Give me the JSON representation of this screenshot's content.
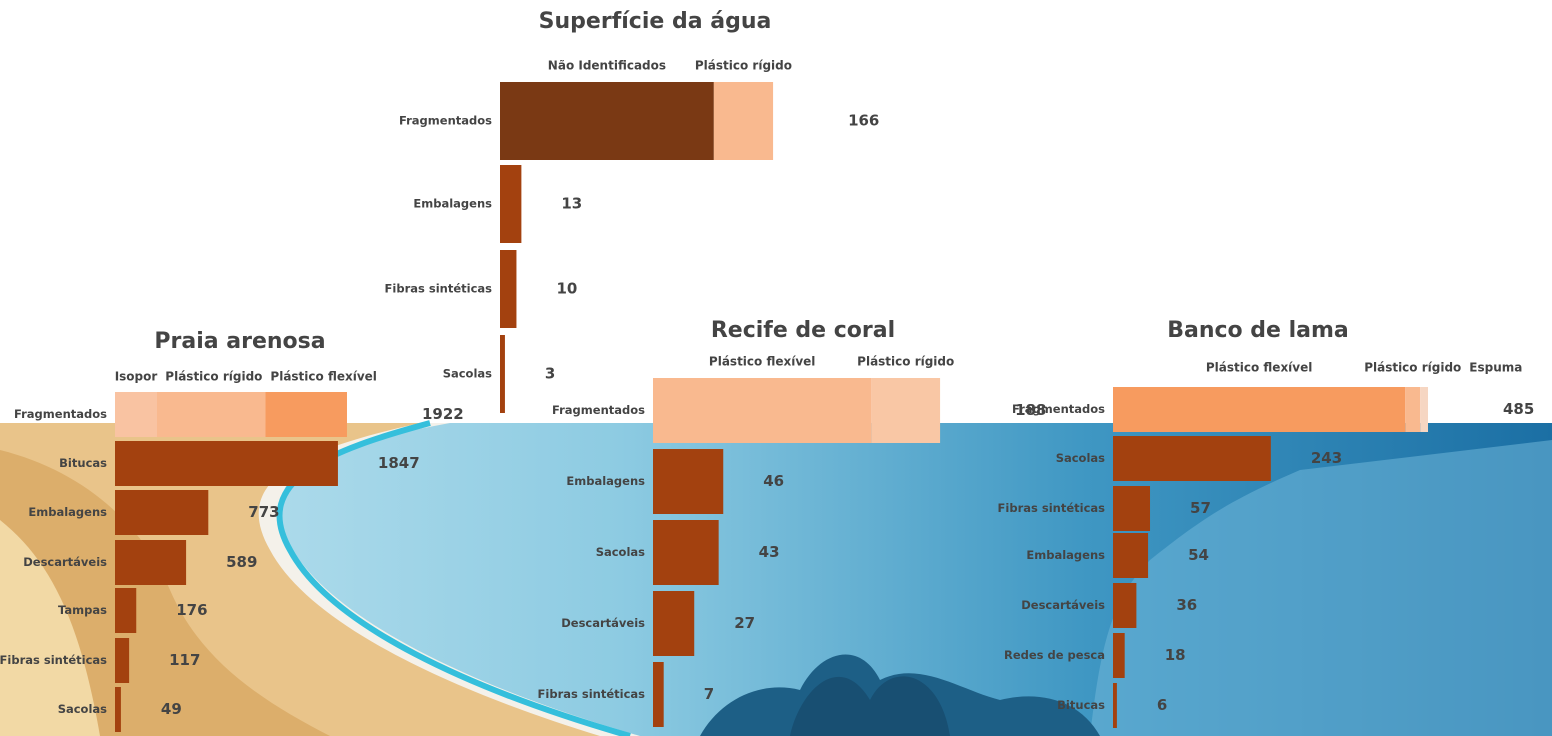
{
  "chart_data": [
    {
      "type": "bar",
      "title": "Superfície da água",
      "categories": [
        "Fragmentados",
        "Embalagens",
        "Fibras sintéticas",
        "Sacolas"
      ],
      "values": [
        166,
        13,
        10,
        3
      ],
      "color": "#a3410f",
      "stack": [
        {
          "name": "Não Identificados",
          "color": "#7a3914",
          "value": 130
        },
        {
          "name": "Plástico rígido",
          "color": "#f9b98f",
          "value": 36
        }
      ]
    },
    {
      "type": "bar",
      "title": "Praia arenosa",
      "categories": [
        "Fragmentados",
        "Bitucas",
        "Embalagens",
        "Descartáveis",
        "Tampas",
        "Fibras sintéticas",
        "Sacolas"
      ],
      "values": [
        1922,
        1847,
        773,
        589,
        176,
        117,
        49
      ],
      "color": "#a3410f",
      "stack": [
        {
          "name": "Isopor",
          "color": "#f9c3a2",
          "value": 348
        },
        {
          "name": "Plástico rígido",
          "color": "#f9b98f",
          "value": 899
        },
        {
          "name": "Plástico flexível",
          "color": "#f79b5f",
          "value": 675
        }
      ]
    },
    {
      "type": "bar",
      "title": "Recife de coral",
      "categories": [
        "Fragmentados",
        "Embalagens",
        "Sacolas",
        "Descartáveis",
        "Fibras sintéticas"
      ],
      "values": [
        188,
        46,
        43,
        27,
        7
      ],
      "color": "#a3410f",
      "stack": [
        {
          "name": "Plástico flexível",
          "color": "#f9b98f",
          "value": 143
        },
        {
          "name": "Plástico rígido",
          "color": "#f9c7a5",
          "value": 45
        }
      ]
    },
    {
      "type": "bar",
      "title": "Banco de lama",
      "categories": [
        "Fragmentados",
        "Sacolas",
        "Fibras sintéticas",
        "Embalagens",
        "Descartáveis",
        "Redes de pesca",
        "Bitucas"
      ],
      "values": [
        485,
        243,
        57,
        54,
        36,
        18,
        6
      ],
      "color": "#a3410f",
      "stack": [
        {
          "name": "Plástico flexível",
          "color": "#f79b5f",
          "value": 450
        },
        {
          "name": "Plástico rígido",
          "color": "#f9b98f",
          "value": 23
        },
        {
          "name": "Espuma",
          "color": "#f6d6c2",
          "value": 12
        }
      ]
    }
  ]
}
